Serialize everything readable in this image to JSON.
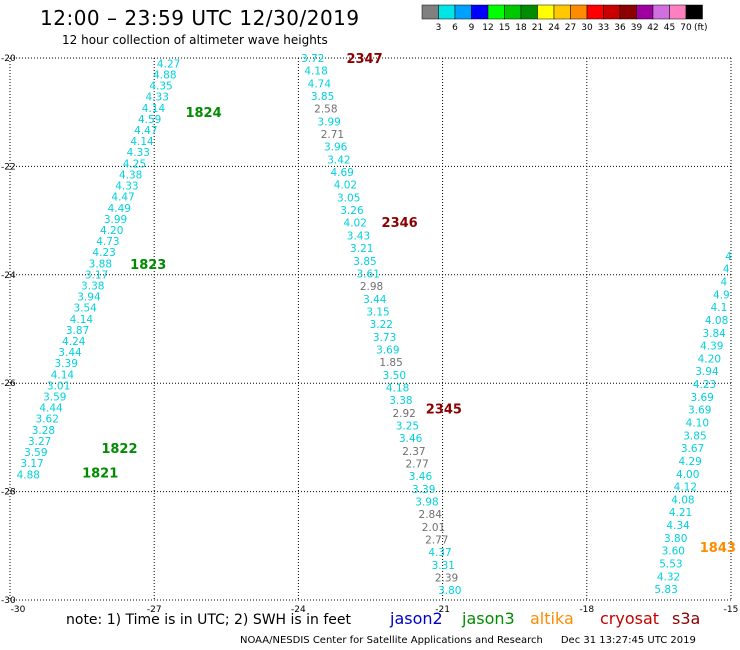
{
  "header": {
    "title": "12:00 – 23:59 UTC 12/30/2019",
    "subtitle": "12 hour collection of altimeter wave heights"
  },
  "colorbar": {
    "colors": [
      "#808080",
      "#00e5e5",
      "#00a0ff",
      "#0000ff",
      "#00ff00",
      "#00c800",
      "#008c00",
      "#ffff00",
      "#ffc800",
      "#ff8c00",
      "#ff0000",
      "#c80000",
      "#8c0000",
      "#a000a0",
      "#d070e0",
      "#ff80c0",
      "#000000"
    ],
    "labels": [
      "3",
      "6",
      "9",
      "12",
      "15",
      "18",
      "21",
      "24",
      "27",
      "30",
      "33",
      "36",
      "39",
      "42",
      "45",
      "70"
    ],
    "unit": "(ft)"
  },
  "notes": {
    "note": "note:  1) Time is in UTC;  2) SWH is in feet",
    "credit": "NOAA/NESDIS Center for Satellite Applications and Research",
    "timestamp": "Dec 31 13:27:45 UTC 2019"
  },
  "satellites": [
    {
      "name": "jason2",
      "color": "#0000c8"
    },
    {
      "name": "jason3",
      "color": "#008c00"
    },
    {
      "name": "altika",
      "color": "#ff8c00"
    },
    {
      "name": "cryosat",
      "color": "#c80000"
    },
    {
      "name": "s3a",
      "color": "#8c0000"
    }
  ],
  "chart_data": {
    "type": "scatter",
    "xlim": [
      -30,
      -15
    ],
    "ylim": [
      -30,
      -20
    ],
    "x_ticks": [
      "-30",
      "-27",
      "-24",
      "-21",
      "-18",
      "-15"
    ],
    "y_ticks": [
      "-20",
      "-22",
      "-24",
      "-26",
      "-28",
      "-30"
    ],
    "grid": true,
    "grid_style": "dotted",
    "value_colors": {
      "cyan": "#00d2dc",
      "gray": "#707070"
    },
    "track_labels": [
      {
        "text": "1824",
        "lon": -26.35,
        "lat": -21.0,
        "color": "#008c00"
      },
      {
        "text": "1823",
        "lon": -27.5,
        "lat": -23.8,
        "color": "#008c00"
      },
      {
        "text": "1822",
        "lon": -28.1,
        "lat": -27.2,
        "color": "#008c00"
      },
      {
        "text": "1821",
        "lon": -28.5,
        "lat": -27.65,
        "color": "#008c00"
      },
      {
        "text": "2347",
        "lon": -23.0,
        "lat": -20.0,
        "color": "#8c0000"
      },
      {
        "text": "2346",
        "lon": -22.27,
        "lat": -23.03,
        "color": "#8c0000"
      },
      {
        "text": "2345",
        "lon": -21.35,
        "lat": -26.47,
        "color": "#8c0000"
      },
      {
        "text": "1843",
        "lon": -15.65,
        "lat": -29.02,
        "color": "#ff8c00"
      }
    ],
    "tracks": [
      {
        "lon_start": -26.7,
        "lat_start": -20.1,
        "lon_end": -29.62,
        "lat_end": -27.68,
        "values": [
          "4.27",
          "4.88",
          "4.35",
          "4.33",
          "4.14",
          "4.59",
          "4.47",
          "4.14",
          "4.33",
          "4.25",
          "4.38",
          "4.33",
          "4.47",
          "4.49",
          "3.99",
          "4.20",
          "4.73",
          "4.23",
          "3.88",
          "3.17",
          "3.38",
          "3.94",
          "3.54",
          "4.14",
          "3.87",
          "4.24",
          "3.44",
          "3.39",
          "4.14",
          "3.01",
          "3.59",
          "4.44",
          "3.62",
          "3.28",
          "3.27",
          "3.59",
          "3.17",
          "4.88"
        ],
        "gray": []
      },
      {
        "lon_start": -23.7,
        "lat_start": -20.0,
        "lon_end": -20.85,
        "lat_end": -29.82,
        "values": [
          "3.72",
          "4.18",
          "4.74",
          "3.85",
          "2.58",
          "3.99",
          "2.71",
          "3.96",
          "3.42",
          "4.69",
          "4.02",
          "3.05",
          "3.26",
          "4.02",
          "3.43",
          "3.21",
          "3.85",
          "3.61",
          "2.98",
          "3.44",
          "3.15",
          "3.22",
          "3.73",
          "3.69",
          "1.85",
          "3.50",
          "4.18",
          "3.38",
          "2.92",
          "3.25",
          "3.46",
          "2.37",
          "2.77",
          "3.46",
          "3.39",
          "3.98",
          "2.84",
          "2.01",
          "2.77",
          "4.37",
          "3.31",
          "2.39",
          "3.80"
        ],
        "gray": [
          4,
          6,
          18,
          24,
          28,
          31,
          32,
          36,
          37,
          38,
          41
        ]
      },
      {
        "lon_start": -15.05,
        "lat_start": -23.65,
        "lon_end": -16.35,
        "lat_end": -29.8,
        "values": [
          "4",
          "4",
          "4",
          "4.9",
          "4.1",
          "4.08",
          "3.84",
          "4.39",
          "4.20",
          "3.94",
          "4.23",
          "3.69",
          "3.69",
          "4.10",
          "3.85",
          "3.67",
          "4.29",
          "4.00",
          "4.12",
          "4.08",
          "4.21",
          "4.34",
          "3.80",
          "3.60",
          "5.53",
          "4.32",
          "5.83"
        ],
        "gray": []
      }
    ]
  }
}
